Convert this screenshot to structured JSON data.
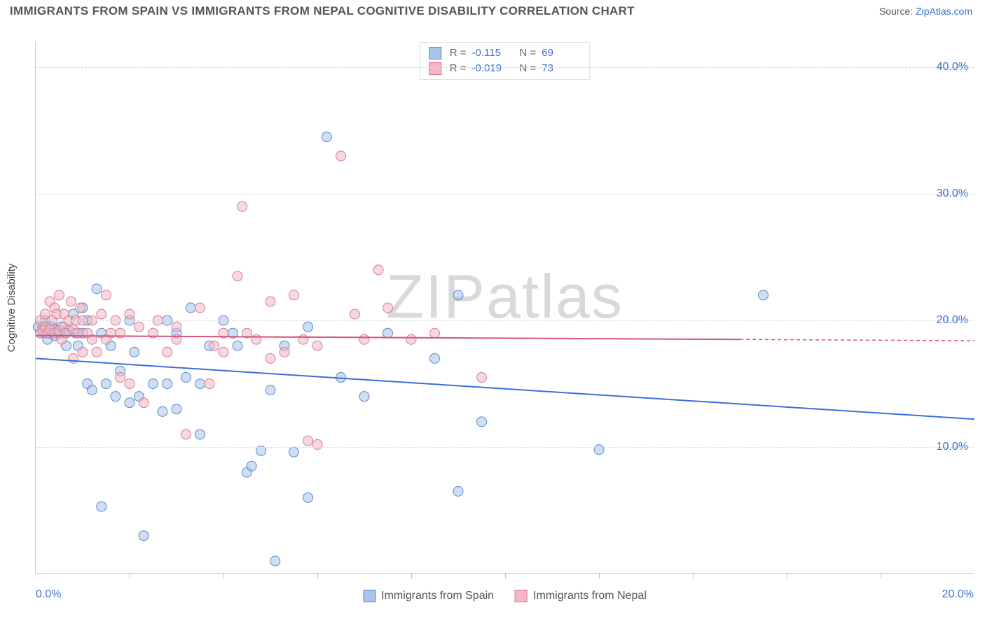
{
  "title": "IMMIGRANTS FROM SPAIN VS IMMIGRANTS FROM NEPAL COGNITIVE DISABILITY CORRELATION CHART",
  "source_label": "Source:",
  "source_name": "ZipAtlas.com",
  "watermark": {
    "part1": "ZIP",
    "part2": "atlas"
  },
  "y_axis_title": "Cognitive Disability",
  "chart": {
    "type": "scatter",
    "xlim": [
      0,
      20
    ],
    "ylim": [
      0,
      42
    ],
    "x_ticks_major": [
      0,
      20
    ],
    "x_ticks_minor": [
      2,
      4,
      6,
      8,
      10,
      12,
      14,
      16,
      18
    ],
    "y_ticks": [
      10,
      20,
      30,
      40
    ],
    "y_tick_labels": [
      "10.0%",
      "20.0%",
      "30.0%",
      "40.0%"
    ],
    "x_tick_labels": [
      "0.0%",
      "20.0%"
    ],
    "background_color": "#ffffff",
    "grid_color": "#d9d9d9",
    "axis_color": "#cccccc",
    "label_color": "#3b6fd4",
    "marker_radius": 7,
    "marker_opacity": 0.55,
    "line_width": 2
  },
  "series": [
    {
      "name": "Immigrants from Spain",
      "color_fill": "#a8c4e8",
      "color_stroke": "#5b8ad0",
      "line_color": "#3b6fd4",
      "R": "-0.115",
      "N": "69",
      "regression": {
        "x1": 0,
        "y1": 17.0,
        "x2": 20,
        "y2": 12.2
      },
      "points": [
        [
          0.05,
          19.5
        ],
        [
          0.1,
          19.0
        ],
        [
          0.15,
          19.5
        ],
        [
          0.2,
          19.0
        ],
        [
          0.2,
          20.0
        ],
        [
          0.25,
          18.5
        ],
        [
          0.3,
          19.5
        ],
        [
          0.3,
          19.0
        ],
        [
          0.35,
          19.5
        ],
        [
          0.4,
          18.8
        ],
        [
          0.4,
          19.3
        ],
        [
          0.5,
          19.0
        ],
        [
          0.55,
          19.5
        ],
        [
          0.6,
          19.0
        ],
        [
          0.65,
          18.0
        ],
        [
          0.7,
          19.2
        ],
        [
          0.8,
          20.5
        ],
        [
          0.85,
          19.0
        ],
        [
          0.9,
          18.0
        ],
        [
          1.0,
          19.0
        ],
        [
          1.0,
          21.0
        ],
        [
          1.1,
          15.0
        ],
        [
          1.1,
          20.0
        ],
        [
          1.2,
          14.5
        ],
        [
          1.3,
          22.5
        ],
        [
          1.4,
          19.0
        ],
        [
          1.4,
          5.3
        ],
        [
          1.5,
          15.0
        ],
        [
          1.6,
          18.0
        ],
        [
          1.7,
          14.0
        ],
        [
          1.8,
          16.0
        ],
        [
          2.0,
          13.5
        ],
        [
          2.0,
          20.0
        ],
        [
          2.1,
          17.5
        ],
        [
          2.2,
          14.0
        ],
        [
          2.3,
          3.0
        ],
        [
          2.5,
          15.0
        ],
        [
          2.7,
          12.8
        ],
        [
          2.8,
          15.0
        ],
        [
          2.8,
          20.0
        ],
        [
          3.0,
          19.0
        ],
        [
          3.0,
          13.0
        ],
        [
          3.2,
          15.5
        ],
        [
          3.3,
          21.0
        ],
        [
          3.5,
          15.0
        ],
        [
          3.5,
          11.0
        ],
        [
          3.7,
          18.0
        ],
        [
          4.0,
          20.0
        ],
        [
          4.2,
          19.0
        ],
        [
          4.3,
          18.0
        ],
        [
          4.5,
          8.0
        ],
        [
          4.6,
          8.5
        ],
        [
          4.8,
          9.7
        ],
        [
          5.0,
          14.5
        ],
        [
          5.1,
          1.0
        ],
        [
          5.3,
          18.0
        ],
        [
          5.5,
          9.6
        ],
        [
          5.8,
          6.0
        ],
        [
          5.8,
          19.5
        ],
        [
          6.2,
          34.5
        ],
        [
          6.5,
          15.5
        ],
        [
          7.0,
          14.0
        ],
        [
          7.5,
          19.0
        ],
        [
          8.5,
          17.0
        ],
        [
          9.0,
          6.5
        ],
        [
          9.5,
          12.0
        ],
        [
          12.0,
          9.8
        ],
        [
          15.5,
          22.0
        ],
        [
          9.0,
          22
        ]
      ]
    },
    {
      "name": "Immigrants from Nepal",
      "color_fill": "#f3b8c4",
      "color_stroke": "#d97a94",
      "line_color": "#d9537a",
      "R": "-0.019",
      "N": "73",
      "regression": {
        "x1": 0,
        "y1": 18.8,
        "x2": 15,
        "y2": 18.5,
        "x_dash_to": 20,
        "y_dash_to": 18.4
      },
      "points": [
        [
          0.1,
          19.0
        ],
        [
          0.1,
          20.0
        ],
        [
          0.15,
          19.2
        ],
        [
          0.2,
          19.5
        ],
        [
          0.2,
          20.5
        ],
        [
          0.25,
          19.0
        ],
        [
          0.3,
          19.3
        ],
        [
          0.3,
          21.5
        ],
        [
          0.35,
          20.0
        ],
        [
          0.4,
          19.0
        ],
        [
          0.4,
          21.0
        ],
        [
          0.45,
          20.5
        ],
        [
          0.5,
          19.2
        ],
        [
          0.5,
          22.0
        ],
        [
          0.55,
          18.5
        ],
        [
          0.6,
          19.5
        ],
        [
          0.6,
          20.5
        ],
        [
          0.65,
          19.0
        ],
        [
          0.7,
          20.0
        ],
        [
          0.75,
          21.5
        ],
        [
          0.8,
          17.0
        ],
        [
          0.8,
          19.3
        ],
        [
          0.85,
          20.0
        ],
        [
          0.9,
          19.0
        ],
        [
          0.95,
          21.0
        ],
        [
          1.0,
          17.5
        ],
        [
          1.0,
          20.0
        ],
        [
          1.1,
          19.0
        ],
        [
          1.2,
          20.0
        ],
        [
          1.2,
          18.5
        ],
        [
          1.3,
          17.5
        ],
        [
          1.4,
          20.5
        ],
        [
          1.5,
          22.0
        ],
        [
          1.5,
          18.5
        ],
        [
          1.6,
          19.0
        ],
        [
          1.7,
          20.0
        ],
        [
          1.8,
          15.5
        ],
        [
          1.8,
          19.0
        ],
        [
          2.0,
          20.5
        ],
        [
          2.0,
          15.0
        ],
        [
          2.2,
          19.5
        ],
        [
          2.3,
          13.5
        ],
        [
          2.5,
          19.0
        ],
        [
          2.6,
          20.0
        ],
        [
          2.8,
          17.5
        ],
        [
          3.0,
          18.5
        ],
        [
          3.0,
          19.5
        ],
        [
          3.2,
          11.0
        ],
        [
          3.5,
          21.0
        ],
        [
          3.7,
          15.0
        ],
        [
          3.8,
          18.0
        ],
        [
          4.0,
          19.0
        ],
        [
          4.0,
          17.5
        ],
        [
          4.3,
          23.5
        ],
        [
          4.4,
          29.0
        ],
        [
          4.5,
          19.0
        ],
        [
          4.7,
          18.5
        ],
        [
          5.0,
          21.5
        ],
        [
          5.0,
          17.0
        ],
        [
          5.3,
          17.5
        ],
        [
          5.5,
          22.0
        ],
        [
          5.7,
          18.5
        ],
        [
          5.8,
          10.5
        ],
        [
          6.0,
          18.0
        ],
        [
          6.5,
          33.0
        ],
        [
          6.8,
          20.5
        ],
        [
          7.0,
          18.5
        ],
        [
          7.3,
          24.0
        ],
        [
          7.5,
          21.0
        ],
        [
          8.0,
          18.5
        ],
        [
          8.5,
          19.0
        ],
        [
          9.5,
          15.5
        ],
        [
          6.0,
          10.2
        ]
      ]
    }
  ]
}
